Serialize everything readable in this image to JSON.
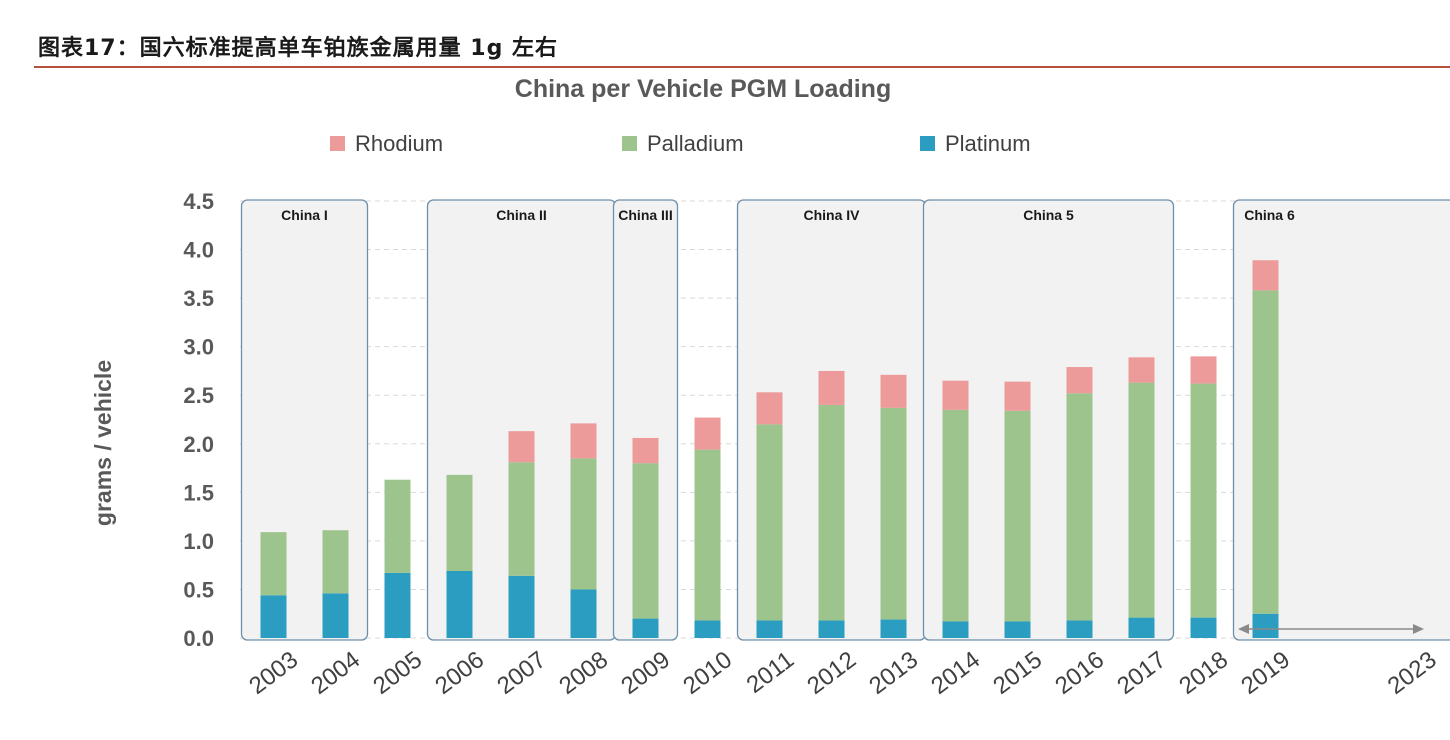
{
  "header": {
    "figure_label": "图表17：",
    "caption": "国六标准提高单车铂族金属用量 1g 左右"
  },
  "colors": {
    "rhodium": "#ec9a9a",
    "palladium": "#9ec48e",
    "platinum": "#2b9dc0",
    "grid": "#d9d9d9",
    "era_border": "#6d8faa",
    "era_fill": "#f2f2f2",
    "arrow": "#8a8a8a"
  },
  "chart_data": {
    "type": "bar",
    "stacked": true,
    "title": "China per Vehicle PGM Loading",
    "ylabel": "grams / vehicle",
    "xlabel": "",
    "ylim": [
      0,
      4.5
    ],
    "yticks": [
      "0.0",
      "0.5",
      "1.0",
      "1.5",
      "2.0",
      "2.5",
      "3.0",
      "3.5",
      "4.0",
      "4.5"
    ],
    "grid": true,
    "legend_position": "top",
    "categories": [
      "2003",
      "2004",
      "2005",
      "2006",
      "2007",
      "2008",
      "2009",
      "2010",
      "2011",
      "2012",
      "2013",
      "2014",
      "2015",
      "2016",
      "2017",
      "2018",
      "2019"
    ],
    "extra_axis_label": "2023",
    "series": [
      {
        "name": "Platinum",
        "values": [
          0.44,
          0.46,
          0.67,
          0.69,
          0.64,
          0.5,
          0.2,
          0.18,
          0.18,
          0.18,
          0.19,
          0.17,
          0.17,
          0.18,
          0.21,
          0.21,
          0.25
        ]
      },
      {
        "name": "Palladium",
        "values": [
          0.65,
          0.65,
          0.96,
          0.99,
          1.17,
          1.35,
          1.6,
          1.76,
          2.02,
          2.22,
          2.18,
          2.18,
          2.17,
          2.34,
          2.42,
          2.41,
          3.33
        ]
      },
      {
        "name": "Rhodium",
        "values": [
          0,
          0,
          0,
          0,
          0.32,
          0.36,
          0.26,
          0.33,
          0.33,
          0.35,
          0.34,
          0.3,
          0.3,
          0.27,
          0.26,
          0.28,
          0.31
        ]
      }
    ],
    "legend_order": [
      "Rhodium",
      "Palladium",
      "Platinum"
    ],
    "eras": [
      {
        "label": "China I",
        "from": "2003",
        "to": "2004"
      },
      {
        "label": "China II",
        "from": "2006",
        "to": "2008"
      },
      {
        "label": "China III",
        "from": "2009",
        "to": "2009"
      },
      {
        "label": "China IV",
        "from": "2011",
        "to": "2013"
      },
      {
        "label": "China 5",
        "from": "2014",
        "to": "2017"
      },
      {
        "label": "China 6",
        "from": "2019",
        "to": "2023"
      }
    ],
    "annotations": [
      {
        "type": "double-arrow",
        "from": "2019",
        "to": "2023"
      }
    ]
  }
}
